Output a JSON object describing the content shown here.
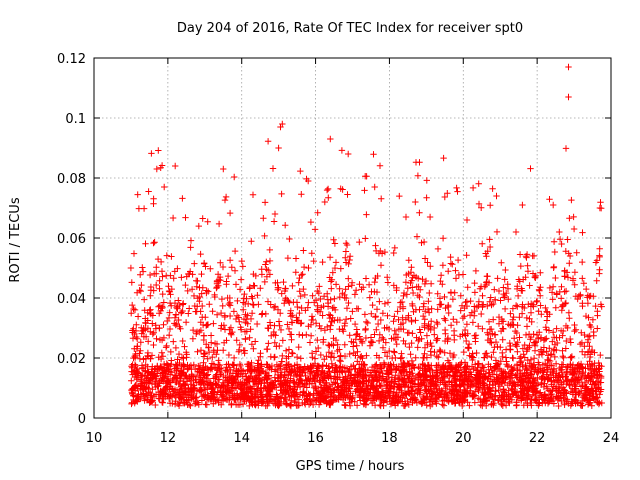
{
  "chart_data": {
    "type": "scatter",
    "title": "Day 204 of 2016, Rate Of TEC Index for receiver spt0",
    "xlabel": "GPS time / hours",
    "ylabel": "ROTI / TECUs",
    "xlim": [
      10,
      24
    ],
    "ylim": [
      0,
      0.12
    ],
    "x_ticks": [
      10,
      12,
      14,
      16,
      18,
      20,
      22,
      24
    ],
    "x_tick_labels": [
      "10",
      "12",
      "14",
      "16",
      "18",
      "20",
      "22",
      "24"
    ],
    "y_ticks": [
      0,
      0.02,
      0.04,
      0.06,
      0.08,
      0.1,
      0.12
    ],
    "y_tick_labels": [
      "0",
      "0.02",
      "0.04",
      "0.06",
      "0.08",
      "0.1",
      "0.12"
    ],
    "grid": true,
    "marker": "+",
    "series": [
      {
        "name": "ROTI",
        "color": "#ff0000",
        "x_range": [
          11.0,
          23.75
        ],
        "notable_points": [
          {
            "x": 22.85,
            "y": 0.117
          },
          {
            "x": 22.85,
            "y": 0.107
          },
          {
            "x": 15.1,
            "y": 0.098
          },
          {
            "x": 15.05,
            "y": 0.097
          },
          {
            "x": 16.4,
            "y": 0.093
          },
          {
            "x": 15.0,
            "y": 0.09
          },
          {
            "x": 12.2,
            "y": 0.084
          },
          {
            "x": 13.5,
            "y": 0.083
          },
          {
            "x": 11.7,
            "y": 0.083
          },
          {
            "x": 15.8,
            "y": 0.079
          },
          {
            "x": 17.6,
            "y": 0.077
          },
          {
            "x": 11.9,
            "y": 0.077
          },
          {
            "x": 18.7,
            "y": 0.072
          },
          {
            "x": 21.6,
            "y": 0.071
          },
          {
            "x": 23.7,
            "y": 0.07
          },
          {
            "x": 16.25,
            "y": 0.072
          },
          {
            "x": 14.9,
            "y": 0.068
          },
          {
            "x": 20.1,
            "y": 0.066
          },
          {
            "x": 19.1,
            "y": 0.067
          },
          {
            "x": 23.0,
            "y": 0.063
          },
          {
            "x": 22.6,
            "y": 0.062
          },
          {
            "x": 11.0,
            "y": 0.05
          },
          {
            "x": 23.75,
            "y": 0.005
          }
        ]
      }
    ]
  }
}
